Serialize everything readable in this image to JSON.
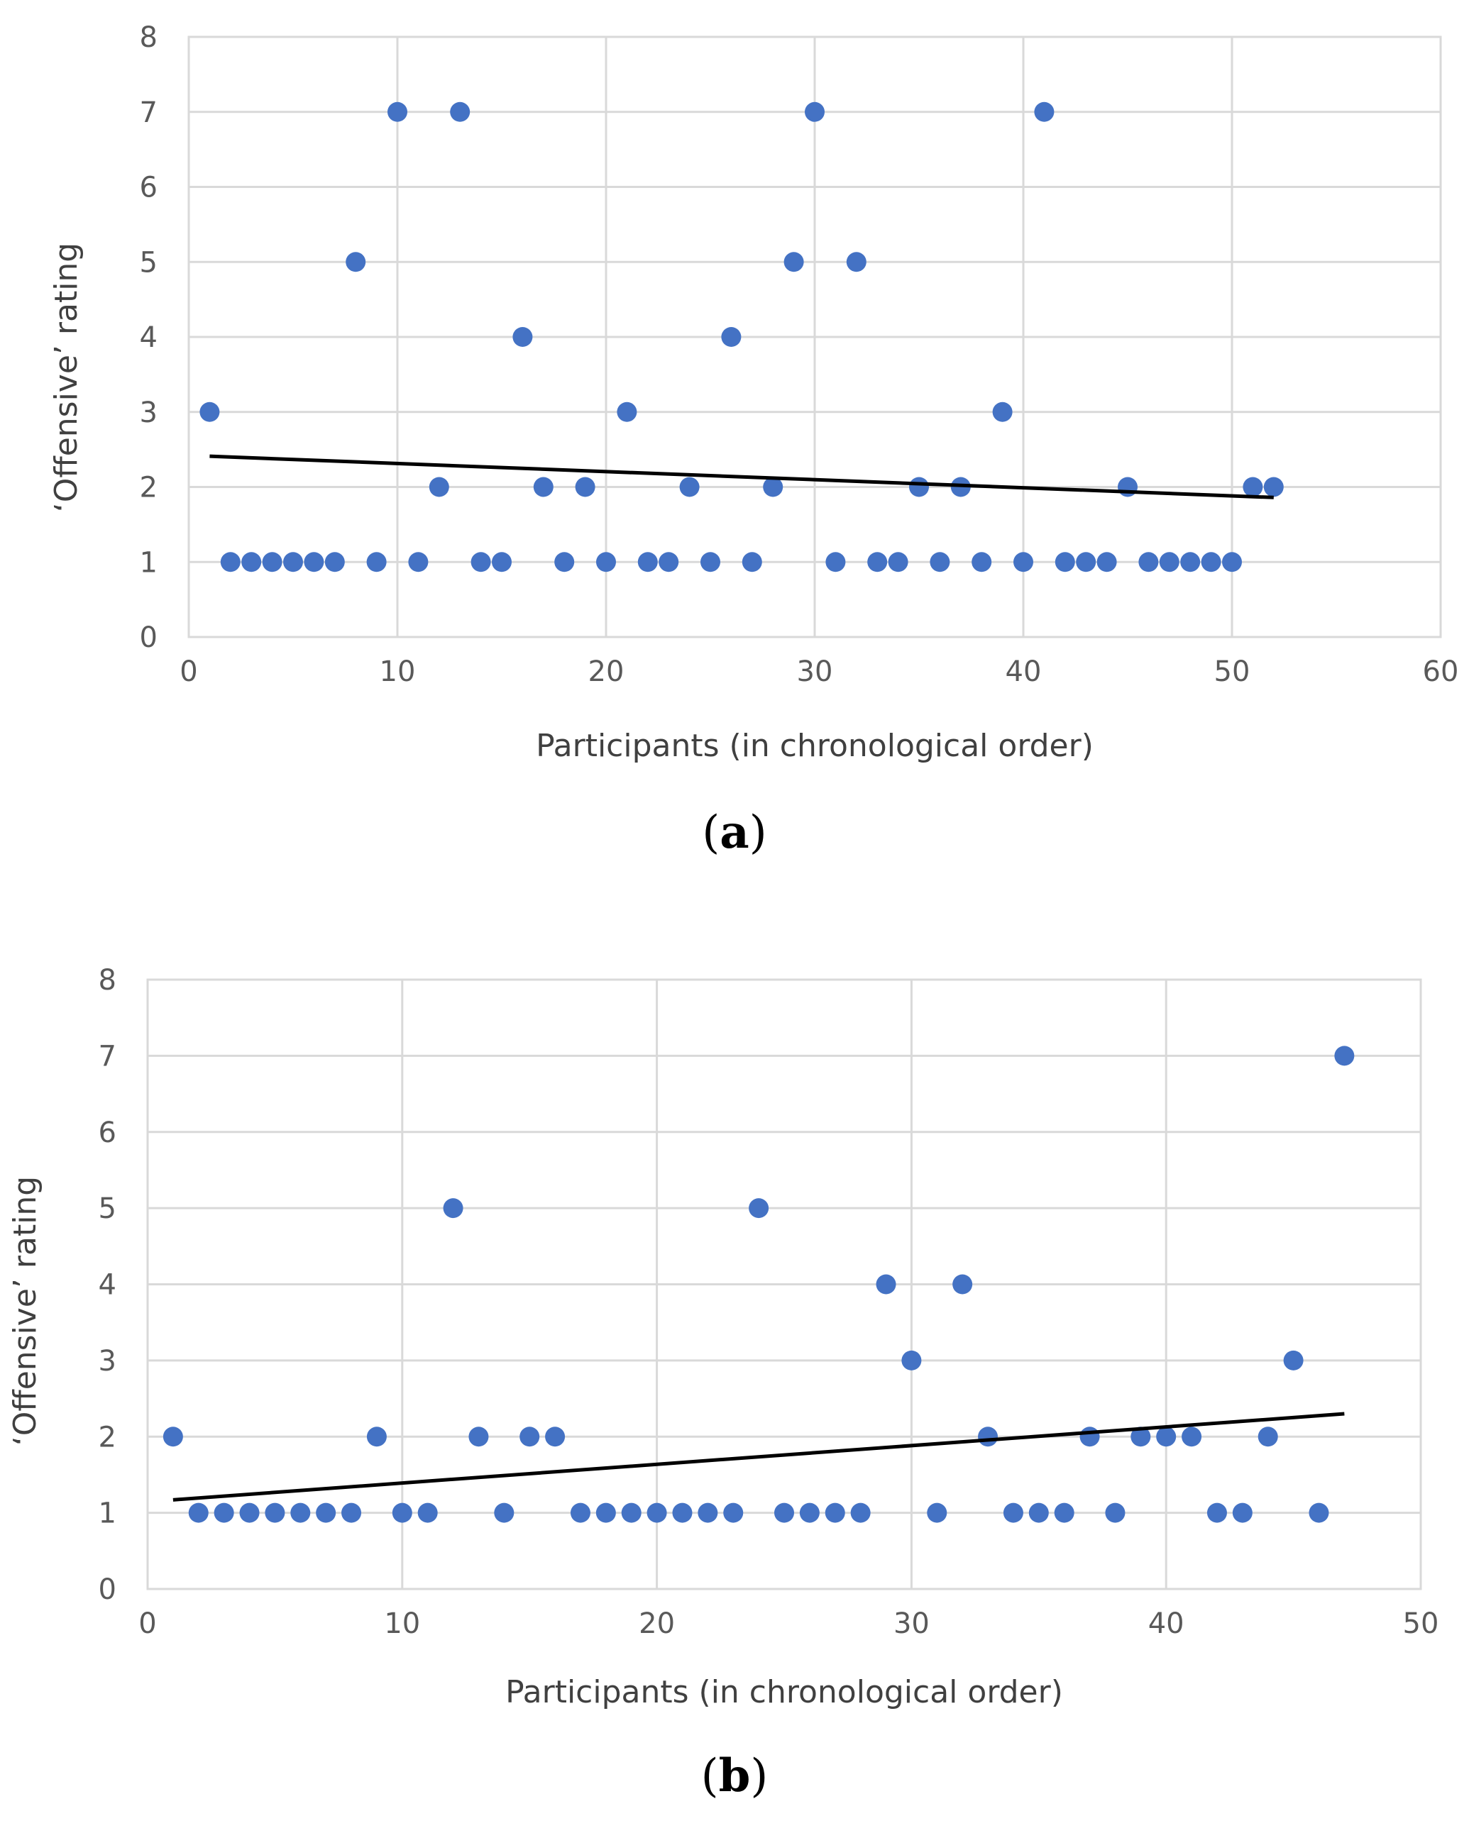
{
  "chart_data": [
    {
      "type": "scatter",
      "panel_label": "(a)",
      "title": "",
      "xlabel": "Participants (in chronological order)",
      "ylabel": "‘Offensive’ rating",
      "xlim": [
        0,
        60
      ],
      "ylim": [
        0,
        8
      ],
      "xticks": [
        0,
        10,
        20,
        30,
        40,
        50,
        60
      ],
      "yticks": [
        0,
        1,
        2,
        3,
        4,
        5,
        6,
        7,
        8
      ],
      "grid": true,
      "marker_color": "#4472C4",
      "series": [
        {
          "name": "Offensive rating",
          "x": [
            1,
            2,
            3,
            4,
            5,
            6,
            7,
            8,
            9,
            10,
            11,
            12,
            13,
            14,
            15,
            16,
            17,
            18,
            19,
            20,
            21,
            22,
            23,
            24,
            25,
            26,
            27,
            28,
            29,
            30,
            31,
            32,
            33,
            34,
            35,
            36,
            37,
            38,
            39,
            40,
            41,
            42,
            43,
            44,
            45,
            46,
            47,
            48,
            49,
            50,
            51,
            52
          ],
          "y": [
            3,
            1,
            1,
            1,
            1,
            1,
            1,
            5,
            1,
            7,
            1,
            2,
            7,
            1,
            1,
            4,
            2,
            1,
            2,
            1,
            3,
            1,
            1,
            2,
            1,
            4,
            1,
            2,
            5,
            7,
            1,
            5,
            1,
            1,
            2,
            1,
            2,
            1,
            3,
            1,
            7,
            1,
            1,
            1,
            2,
            1,
            1,
            1,
            1,
            1,
            2,
            2
          ]
        }
      ],
      "trendline": {
        "type": "linear",
        "x": [
          1,
          52
        ],
        "y": [
          2.41,
          1.86
        ],
        "color": "#000000"
      }
    },
    {
      "type": "scatter",
      "panel_label": "(b)",
      "title": "",
      "xlabel": "Participants (in chronological order)",
      "ylabel": "‘Offensive’ rating",
      "xlim": [
        0,
        50
      ],
      "ylim": [
        0,
        8
      ],
      "xticks": [
        0,
        10,
        20,
        30,
        40,
        50
      ],
      "yticks": [
        0,
        1,
        2,
        3,
        4,
        5,
        6,
        7,
        8
      ],
      "grid": true,
      "marker_color": "#4472C4",
      "series": [
        {
          "name": "Offensive rating",
          "x": [
            1,
            2,
            3,
            4,
            5,
            6,
            7,
            8,
            9,
            10,
            11,
            12,
            13,
            14,
            15,
            16,
            17,
            18,
            19,
            20,
            21,
            22,
            23,
            24,
            25,
            26,
            27,
            28,
            29,
            30,
            31,
            32,
            33,
            34,
            35,
            36,
            37,
            38,
            39,
            40,
            41,
            42,
            43,
            44,
            45,
            46,
            47
          ],
          "y": [
            2,
            1,
            1,
            1,
            1,
            1,
            1,
            1,
            2,
            1,
            1,
            5,
            2,
            1,
            2,
            2,
            1,
            1,
            1,
            1,
            1,
            1,
            1,
            5,
            1,
            1,
            1,
            1,
            4,
            3,
            1,
            4,
            2,
            1,
            1,
            1,
            2,
            1,
            2,
            2,
            2,
            1,
            1,
            2,
            3,
            1,
            7
          ]
        }
      ],
      "trendline": {
        "type": "linear",
        "x": [
          1,
          47
        ],
        "y": [
          1.17,
          2.3
        ],
        "color": "#000000"
      }
    }
  ]
}
